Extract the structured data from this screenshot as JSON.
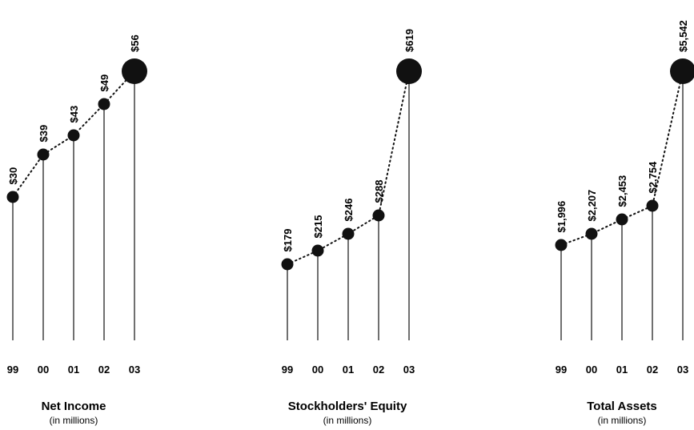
{
  "chart_data": [
    {
      "type": "line",
      "title": "Net Income",
      "subtitle": "(in millions)",
      "categories": [
        "99",
        "00",
        "01",
        "02",
        "03"
      ],
      "values": [
        30,
        39,
        43,
        49,
        56
      ],
      "labels": [
        "$30",
        "$39",
        "$43",
        "$49",
        "$56"
      ],
      "ylim": [
        0,
        56
      ],
      "grid": false
    },
    {
      "type": "line",
      "title": "Stockholders' Equity",
      "subtitle": "(in millions)",
      "categories": [
        "99",
        "00",
        "01",
        "02",
        "03"
      ],
      "values": [
        179,
        215,
        246,
        288,
        619
      ],
      "labels": [
        "$179",
        "$215",
        "$246",
        "$288",
        "$619"
      ],
      "ylim": [
        0,
        619
      ],
      "grid": false
    },
    {
      "type": "line",
      "title": "Total Assets",
      "subtitle": "(in millions)",
      "categories": [
        "99",
        "00",
        "01",
        "02",
        "03"
      ],
      "values": [
        1996,
        2207,
        2453,
        2754,
        5542
      ],
      "labels": [
        "$1,996",
        "$2,207",
        "$2,453",
        "$2,754",
        "$5,542"
      ],
      "ylim": [
        0,
        5542
      ],
      "grid": false
    }
  ]
}
